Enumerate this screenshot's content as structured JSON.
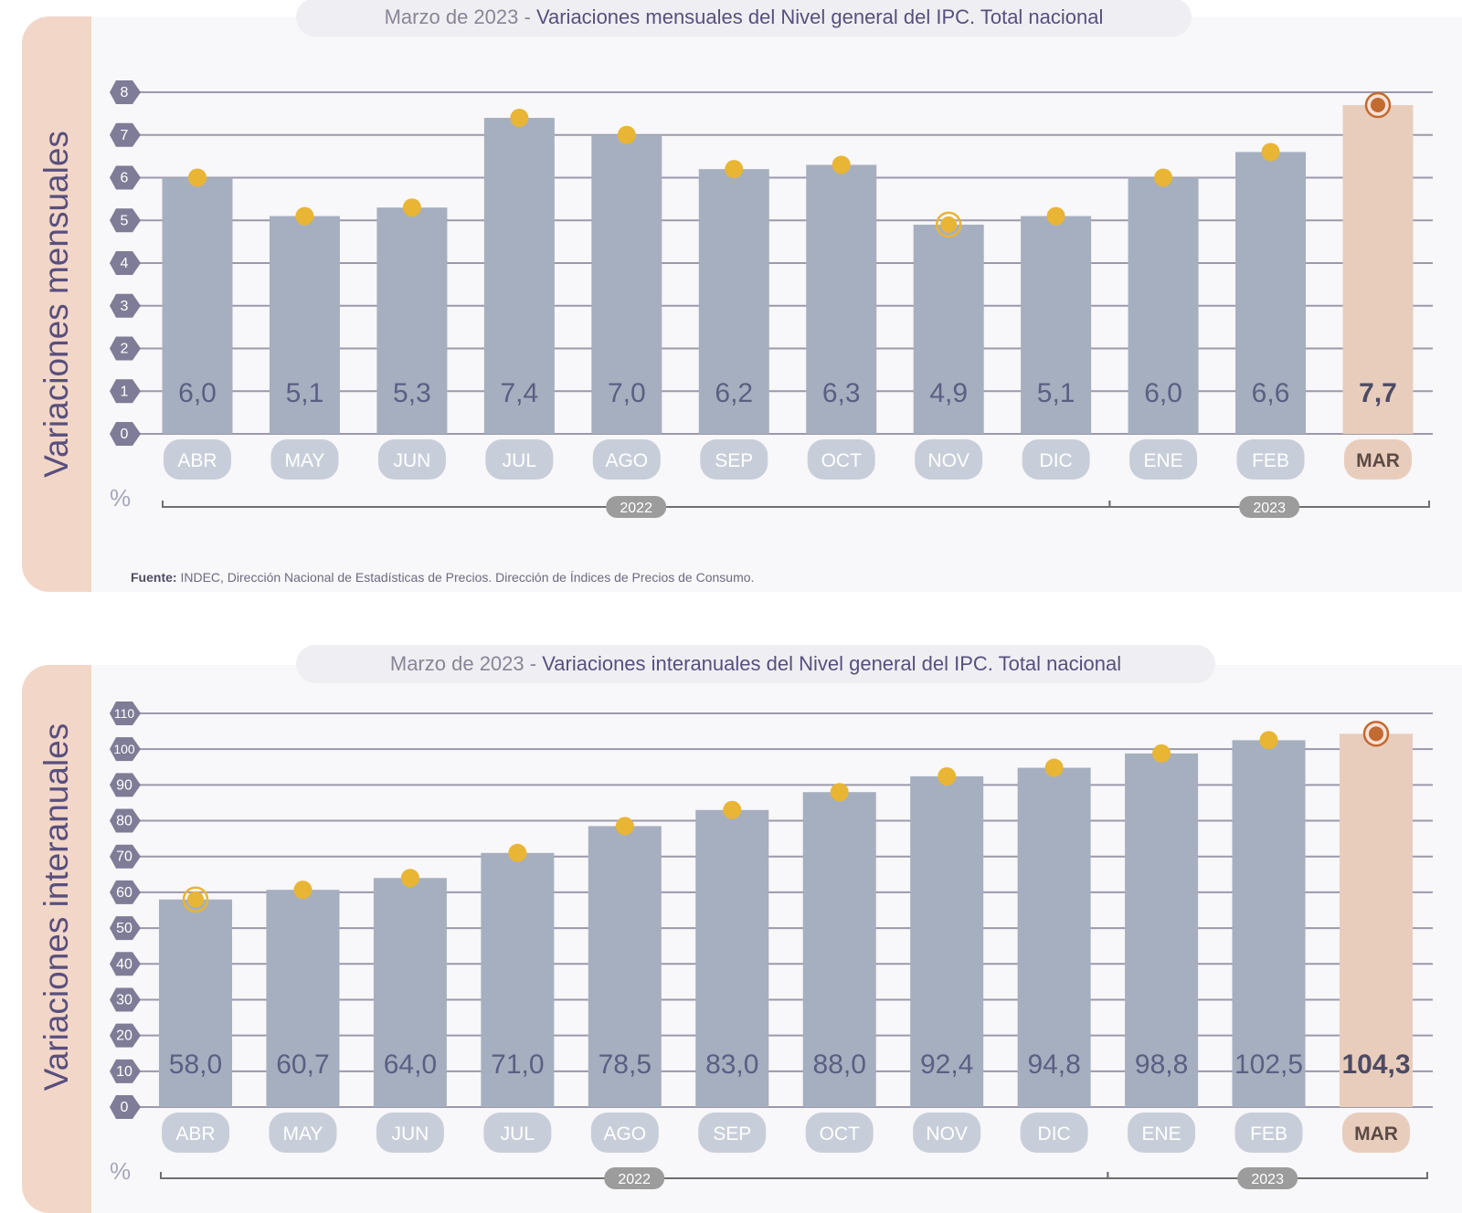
{
  "charts": [
    {
      "title_date": "Marzo de 2023",
      "title_sep": "-",
      "title_main": "Variaciones mensuales del Nivel general del IPC. Total nacional",
      "side_label": "Variaciones mensuales",
      "unit": "%",
      "source_label": "Fuente:",
      "source_text": "INDEC, Dirección Nacional de Estadísticas de Precios. Dirección de Índices de Precios de Consumo."
    },
    {
      "title_date": "Marzo de 2023",
      "title_sep": "-",
      "title_main": "Variaciones interanuales del Nivel general del IPC. Total nacional",
      "side_label": "Variaciones interanuales",
      "unit": "%"
    }
  ],
  "colors": {
    "bar": "#a6afbf",
    "bar_highlight": "#e8cdbd",
    "dot": "#e8b535",
    "dot_highlight": "#c26a32",
    "grid": "#9b99aa",
    "tick_bubble": "#7f7c97",
    "label_text": "#5b5f83",
    "month_pill": "#c8ced9",
    "year_pill": "#9c9c9c"
  },
  "chart_data": [
    {
      "type": "bar",
      "title": "Variaciones mensuales del Nivel general del IPC. Total nacional",
      "categories": [
        "ABR",
        "MAY",
        "JUN",
        "JUL",
        "AGO",
        "SEP",
        "OCT",
        "NOV",
        "DIC",
        "ENE",
        "FEB",
        "MAR"
      ],
      "values": [
        6.0,
        5.1,
        5.3,
        7.4,
        7.0,
        6.2,
        6.3,
        4.9,
        5.1,
        6.0,
        6.6,
        7.7
      ],
      "value_labels": [
        "6,0",
        "5,1",
        "5,3",
        "7,4",
        "7,0",
        "6,2",
        "6,3",
        "4,9",
        "5,1",
        "6,0",
        "6,6",
        "7,7"
      ],
      "ylim": [
        0,
        8
      ],
      "yticks": [
        "0",
        "1",
        "2",
        "3",
        "4",
        "5",
        "6",
        "7",
        "8"
      ],
      "ylabel": "Variaciones mensuales",
      "unit": "%",
      "years": [
        {
          "label": "2022",
          "from": "ABR",
          "to": "DIC"
        },
        {
          "label": "2023",
          "from": "ENE",
          "to": "MAR"
        }
      ],
      "highlight": "MAR",
      "ringed_min": "NOV",
      "grid": true
    },
    {
      "type": "bar",
      "title": "Variaciones interanuales del Nivel general del IPC. Total nacional",
      "categories": [
        "ABR",
        "MAY",
        "JUN",
        "JUL",
        "AGO",
        "SEP",
        "OCT",
        "NOV",
        "DIC",
        "ENE",
        "FEB",
        "MAR"
      ],
      "values": [
        58.0,
        60.7,
        64.0,
        71.0,
        78.5,
        83.0,
        88.0,
        92.4,
        94.8,
        98.8,
        102.5,
        104.3
      ],
      "value_labels": [
        "58,0",
        "60,7",
        "64,0",
        "71,0",
        "78,5",
        "83,0",
        "88,0",
        "92,4",
        "94,8",
        "98,8",
        "102,5",
        "104,3"
      ],
      "ylim": [
        0,
        110
      ],
      "yticks": [
        "0",
        "10",
        "20",
        "30",
        "40",
        "50",
        "60",
        "70",
        "80",
        "90",
        "100",
        "110"
      ],
      "ylabel": "Variaciones interanuales",
      "unit": "%",
      "years": [
        {
          "label": "2022",
          "from": "ABR",
          "to": "DIC"
        },
        {
          "label": "2023",
          "from": "ENE",
          "to": "MAR"
        }
      ],
      "highlight": "MAR",
      "ringed_min": "ABR",
      "grid": true
    }
  ]
}
